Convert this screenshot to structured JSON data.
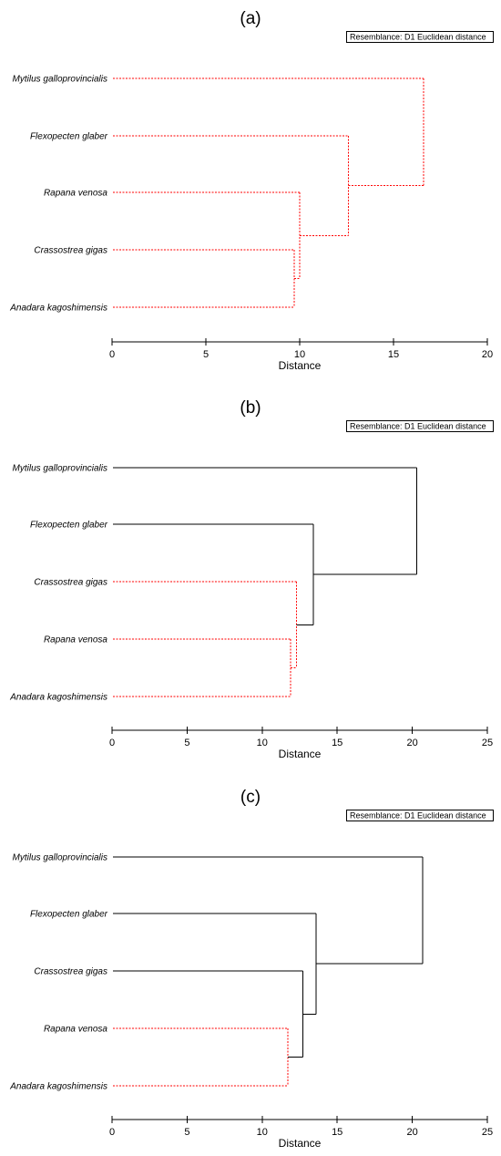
{
  "chart_data": [
    {
      "type": "dendrogram",
      "panel_label": "(a)",
      "resemblance": "Resemblance: D1 Euclidean distance",
      "xlabel": "Distance",
      "xlim": [
        0,
        20
      ],
      "xticks": [
        "0",
        "5",
        "10",
        "15",
        "20"
      ],
      "leaves": [
        "Mytilus galloprovincialis",
        "Flexopecten glaber",
        "Rapana venosa",
        "Crassostrea gigas",
        "Anadara kagoshimensis"
      ],
      "merges": [
        {
          "children": [
            3,
            4
          ],
          "distance": 9.7,
          "significant": false
        },
        {
          "children": [
            2,
            5
          ],
          "distance": 10.0,
          "significant": false
        },
        {
          "children": [
            1,
            6
          ],
          "distance": 12.6,
          "significant": false
        },
        {
          "children": [
            0,
            7
          ],
          "distance": 16.6,
          "significant": false
        }
      ]
    },
    {
      "type": "dendrogram",
      "panel_label": "(b)",
      "resemblance": "Resemblance: D1 Euclidean distance",
      "xlabel": "Distance",
      "xlim": [
        0,
        25
      ],
      "xticks": [
        "0",
        "5",
        "10",
        "15",
        "20",
        "25"
      ],
      "leaves": [
        "Mytilus galloprovincialis",
        "Flexopecten glaber",
        "Crassostrea gigas",
        "Rapana venosa",
        "Anadara kagoshimensis"
      ],
      "merges": [
        {
          "children": [
            3,
            4
          ],
          "distance": 11.9,
          "significant": false
        },
        {
          "children": [
            2,
            5
          ],
          "distance": 12.3,
          "significant": false
        },
        {
          "children": [
            1,
            6
          ],
          "distance": 13.4,
          "significant": true
        },
        {
          "children": [
            0,
            7
          ],
          "distance": 20.3,
          "significant": true
        }
      ]
    },
    {
      "type": "dendrogram",
      "panel_label": "(c)",
      "resemblance": "Resemblance: D1 Euclidean distance",
      "xlabel": "Distance",
      "xlim": [
        0,
        25
      ],
      "xticks": [
        "0",
        "5",
        "10",
        "15",
        "20",
        "25"
      ],
      "leaves": [
        "Mytilus galloprovincialis",
        "Flexopecten glaber",
        "Crassostrea gigas",
        "Rapana venosa",
        "Anadara kagoshimensis"
      ],
      "merges": [
        {
          "children": [
            3,
            4
          ],
          "distance": 11.7,
          "significant": false
        },
        {
          "children": [
            2,
            5
          ],
          "distance": 12.7,
          "significant": true
        },
        {
          "children": [
            1,
            6
          ],
          "distance": 13.6,
          "significant": true
        },
        {
          "children": [
            0,
            7
          ],
          "distance": 20.7,
          "significant": true
        }
      ]
    }
  ],
  "colors": {
    "significant_line": "#000000",
    "nonsignificant_line": "#ff0000",
    "axis": "#000000",
    "text": "#000000"
  }
}
